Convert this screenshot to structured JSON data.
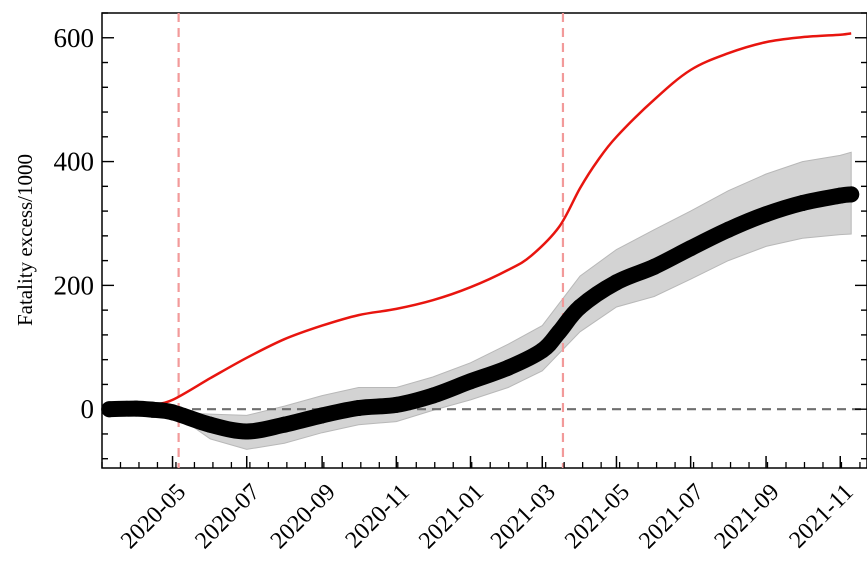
{
  "chart_data": {
    "type": "line",
    "title": "",
    "xlabel": "",
    "ylabel": "Fatality excess/1000",
    "ylim": [
      -95,
      640
    ],
    "xlim": [
      "2020-03-04",
      "2021-11-23"
    ],
    "x_ticks": [
      "2020-05",
      "2020-07",
      "2020-09",
      "2020-11",
      "2021-01",
      "2021-03",
      "2021-05",
      "2021-07",
      "2021-09",
      "2021-11"
    ],
    "y_ticks": [
      0,
      200,
      400,
      600
    ],
    "grid": false,
    "legend": "none",
    "series": [
      {
        "color": "#e8150f",
        "style": "solid-line",
        "points": [
          [
            "2020-03-10",
            0
          ],
          [
            "2020-04-01",
            2
          ],
          [
            "2020-04-15",
            7
          ],
          [
            "2020-05-01",
            15
          ],
          [
            "2020-06-01",
            50
          ],
          [
            "2020-07-01",
            83
          ],
          [
            "2020-08-01",
            113
          ],
          [
            "2020-09-01",
            135
          ],
          [
            "2020-10-01",
            152
          ],
          [
            "2020-11-01",
            162
          ],
          [
            "2020-12-01",
            176
          ],
          [
            "2021-01-01",
            197
          ],
          [
            "2021-02-01",
            225
          ],
          [
            "2021-02-20",
            248
          ],
          [
            "2021-03-15",
            295
          ],
          [
            "2021-04-01",
            357
          ],
          [
            "2021-04-15",
            400
          ],
          [
            "2021-05-01",
            440
          ],
          [
            "2021-06-01",
            500
          ],
          [
            "2021-07-01",
            548
          ],
          [
            "2021-08-01",
            575
          ],
          [
            "2021-09-01",
            593
          ],
          [
            "2021-10-01",
            601
          ],
          [
            "2021-11-01",
            605
          ],
          [
            "2021-11-10",
            607
          ]
        ]
      },
      {
        "color": "#000000",
        "style": "thick-markers",
        "points": [
          [
            "2020-03-10",
            0
          ],
          [
            "2020-04-01",
            1
          ],
          [
            "2020-04-15",
            -1
          ],
          [
            "2020-05-01",
            -5
          ],
          [
            "2020-06-01",
            -25
          ],
          [
            "2020-07-01",
            -36
          ],
          [
            "2020-08-01",
            -25
          ],
          [
            "2020-09-01",
            -10
          ],
          [
            "2020-10-01",
            2
          ],
          [
            "2020-11-01",
            7
          ],
          [
            "2020-12-01",
            22
          ],
          [
            "2021-01-01",
            45
          ],
          [
            "2021-02-01",
            67
          ],
          [
            "2021-03-01",
            95
          ],
          [
            "2021-03-15",
            125
          ],
          [
            "2021-04-01",
            165
          ],
          [
            "2021-05-01",
            205
          ],
          [
            "2021-06-01",
            230
          ],
          [
            "2021-07-01",
            260
          ],
          [
            "2021-08-01",
            290
          ],
          [
            "2021-09-01",
            315
          ],
          [
            "2021-10-01",
            333
          ],
          [
            "2021-11-01",
            345
          ],
          [
            "2021-11-10",
            347
          ]
        ]
      }
    ],
    "band": {
      "color": "#d3d3d3",
      "points": [
        [
          "2020-05-01",
          -5,
          -5
        ],
        [
          "2020-06-01",
          -48,
          -8
        ],
        [
          "2020-07-01",
          -65,
          -10
        ],
        [
          "2020-08-01",
          -55,
          5
        ],
        [
          "2020-09-01",
          -38,
          22
        ],
        [
          "2020-10-01",
          -25,
          35
        ],
        [
          "2020-11-01",
          -20,
          35
        ],
        [
          "2020-12-01",
          -2,
          52
        ],
        [
          "2021-01-01",
          15,
          75
        ],
        [
          "2021-02-01",
          35,
          105
        ],
        [
          "2021-03-01",
          62,
          135
        ],
        [
          "2021-04-01",
          125,
          215
        ],
        [
          "2021-05-01",
          165,
          258
        ],
        [
          "2021-06-01",
          182,
          290
        ],
        [
          "2021-07-01",
          210,
          320
        ],
        [
          "2021-08-01",
          240,
          353
        ],
        [
          "2021-09-01",
          263,
          380
        ],
        [
          "2021-10-01",
          276,
          400
        ],
        [
          "2021-11-01",
          282,
          410
        ],
        [
          "2021-11-10",
          283,
          415
        ]
      ]
    },
    "reference_lines": [
      {
        "orientation": "horizontal",
        "value": 0,
        "color": "#6e6e6e",
        "style": "dashed"
      },
      {
        "orientation": "vertical",
        "value": "2020-05-06",
        "color": "#f29a9a",
        "style": "dashed"
      },
      {
        "orientation": "vertical",
        "value": "2021-03-18",
        "color": "#f29a9a",
        "style": "dashed"
      }
    ]
  }
}
